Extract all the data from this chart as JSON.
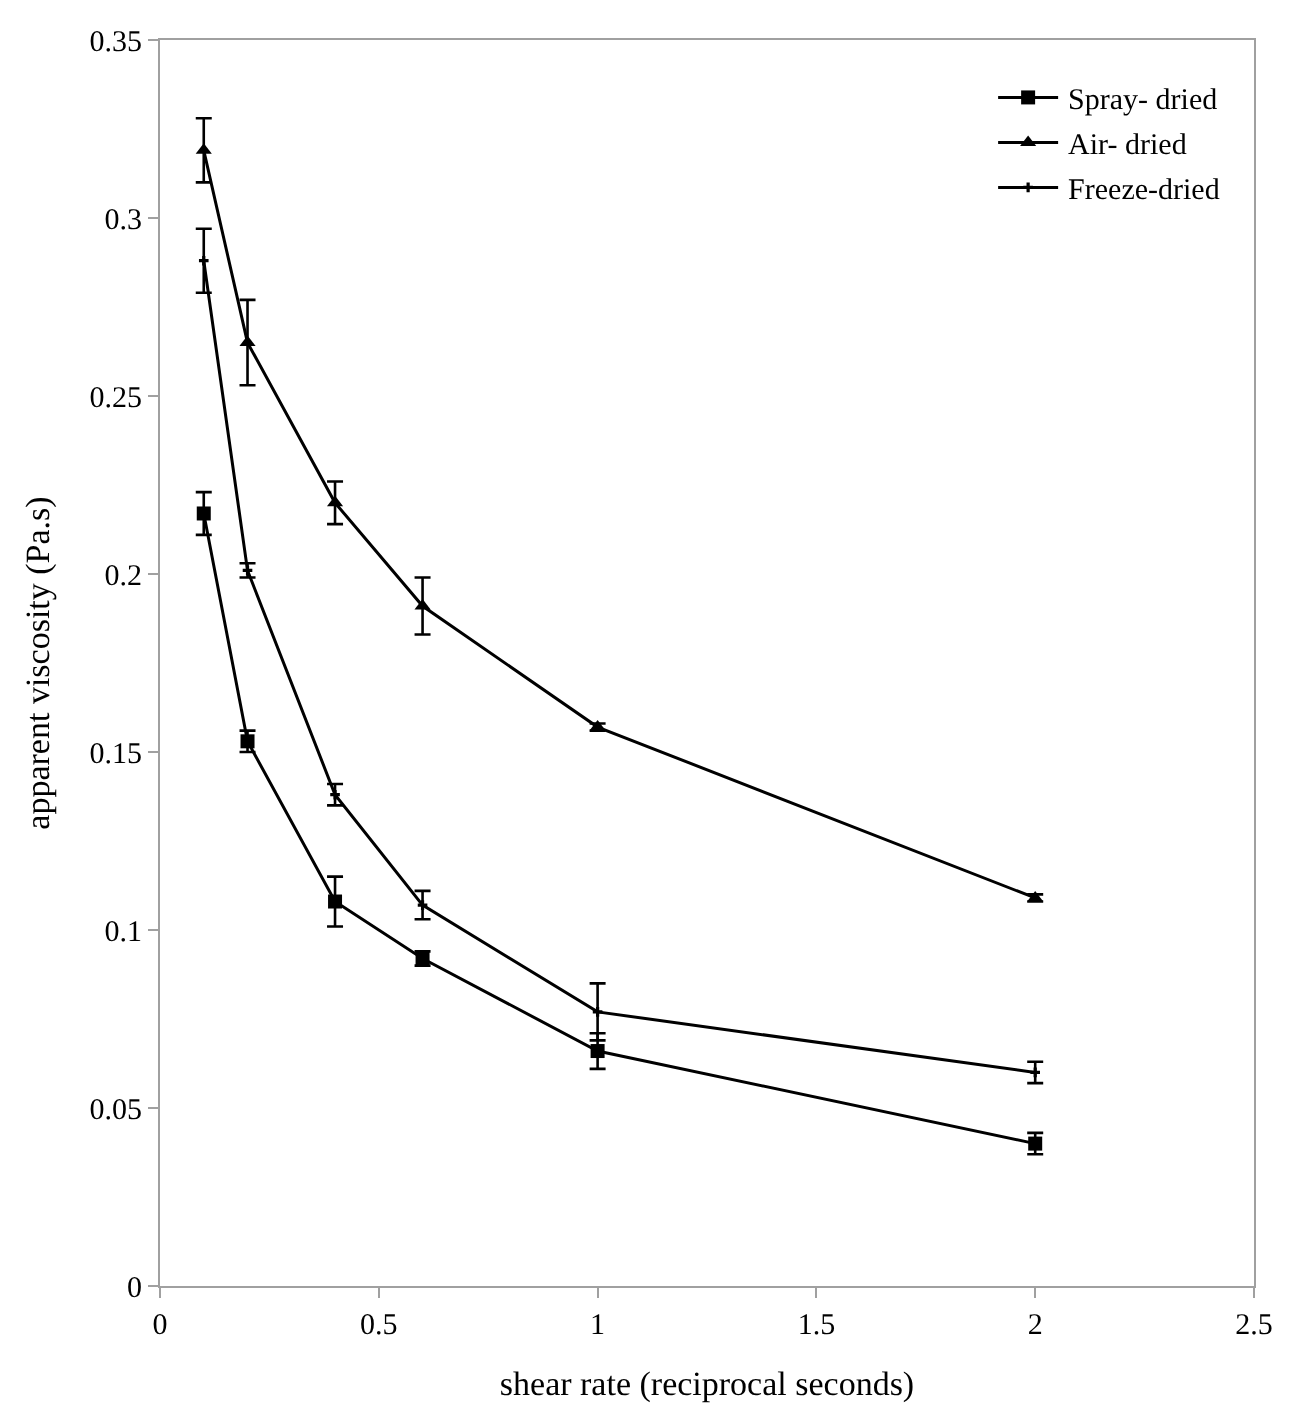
{
  "chart_data": {
    "type": "line",
    "xlabel": "shear rate (reciprocal seconds)",
    "ylabel": "apparent viscosity (Pa.s)",
    "x": [
      0.1,
      0.2,
      0.4,
      0.6,
      1,
      2
    ],
    "series": [
      {
        "name": "Spray- dried",
        "color": "#000000",
        "marker": "square",
        "values": [
          0.217,
          0.153,
          0.108,
          0.092,
          0.066,
          0.04
        ],
        "errors": [
          0.006,
          0.003,
          0.007,
          0.002,
          0.005,
          0.003
        ]
      },
      {
        "name": "Air- dried",
        "color": "#000000",
        "marker": "triangle",
        "values": [
          0.319,
          0.265,
          0.22,
          0.191,
          0.157,
          0.109
        ],
        "errors": [
          0.009,
          0.012,
          0.006,
          0.008,
          0.001,
          0.001
        ]
      },
      {
        "name": "Freeze-dried",
        "color": "#000000",
        "marker": "cross",
        "values": [
          0.288,
          0.201,
          0.138,
          0.107,
          0.077,
          0.06
        ],
        "errors": [
          0.009,
          0.002,
          0.003,
          0.004,
          0.008,
          0.003
        ]
      }
    ],
    "xlim": [
      0,
      2.5
    ],
    "xticks": [
      0,
      0.5,
      1,
      1.5,
      2,
      2.5
    ],
    "ylim": [
      0,
      0.35
    ],
    "yticks": [
      0,
      0.05,
      0.1,
      0.15,
      0.2,
      0.25,
      0.3,
      0.35
    ],
    "legend": "top right",
    "line_style": "solid"
  }
}
